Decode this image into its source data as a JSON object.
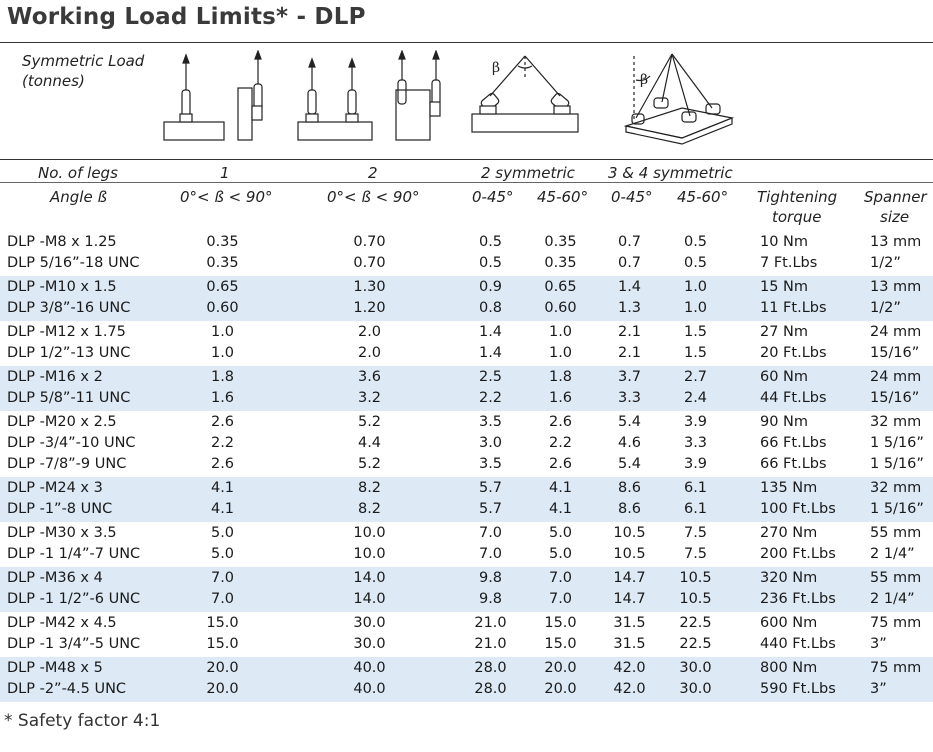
{
  "title": "Working Load Limits* - DLP",
  "header": {
    "symmetric_load": "Symmetric Load",
    "tonnes": "(tonnes)",
    "no_of_legs": "No. of legs",
    "angle": "Angle ß",
    "legs_1": "1",
    "legs_2": "2",
    "legs_2sym": "2 symmetric",
    "legs_34sym": "3 & 4 symmetric",
    "angle_1": "0°< ß < 90°",
    "angle_2": "0°< ß < 90°",
    "a_0_45": "0-45°",
    "a_45_60": "45-60°",
    "b_0_45": "0-45°",
    "b_45_60": "45-60°",
    "torque_1": "Tightening",
    "torque_2": "torque",
    "spanner_1": "Spanner",
    "spanner_2": "size",
    "beta": "β"
  },
  "groups": [
    {
      "rows": [
        [
          "DLP -M8 x 1.25",
          "0.35",
          "0.70",
          "0.5",
          "0.35",
          "0.7",
          "0.5",
          "10 Nm",
          "13 mm"
        ],
        [
          "DLP 5/16”-18 UNC",
          "0.35",
          "0.70",
          "0.5",
          "0.35",
          "0.7",
          "0.5",
          "7 Ft.Lbs",
          "1/2”"
        ]
      ]
    },
    {
      "rows": [
        [
          "DLP -M10 x 1.5",
          "0.65",
          "1.30",
          "0.9",
          "0.65",
          "1.4",
          "1.0",
          "15 Nm",
          "13 mm"
        ],
        [
          "DLP 3/8”-16 UNC",
          "0.60",
          "1.20",
          "0.8",
          "0.60",
          "1.3",
          "1.0",
          "11 Ft.Lbs",
          "1/2”"
        ]
      ]
    },
    {
      "rows": [
        [
          "DLP -M12 x 1.75",
          "1.0",
          "2.0",
          "1.4",
          "1.0",
          "2.1",
          "1.5",
          "27 Nm",
          "24 mm"
        ],
        [
          "DLP 1/2”-13 UNC",
          "1.0",
          "2.0",
          "1.4",
          "1.0",
          "2.1",
          "1.5",
          "20 Ft.Lbs",
          "15/16”"
        ]
      ]
    },
    {
      "rows": [
        [
          "DLP -M16 x 2",
          "1.8",
          "3.6",
          "2.5",
          "1.8",
          "3.7",
          "2.7",
          "60 Nm",
          "24 mm"
        ],
        [
          "DLP 5/8”-11 UNC",
          "1.6",
          "3.2",
          "2.2",
          "1.6",
          "3.3",
          "2.4",
          "44 Ft.Lbs",
          "15/16”"
        ]
      ]
    },
    {
      "rows": [
        [
          "DLP -M20 x 2.5",
          "2.6",
          "5.2",
          "3.5",
          "2.6",
          "5.4",
          "3.9",
          "90 Nm",
          "32 mm"
        ],
        [
          "DLP -3/4”-10 UNC",
          "2.2",
          "4.4",
          "3.0",
          "2.2",
          "4.6",
          "3.3",
          "66 Ft.Lbs",
          "1 5/16”"
        ],
        [
          "DLP -7/8”-9 UNC",
          "2.6",
          "5.2",
          "3.5",
          "2.6",
          "5.4",
          "3.9",
          "66 Ft.Lbs",
          "1 5/16”"
        ]
      ]
    },
    {
      "rows": [
        [
          "DLP -M24 x 3",
          "4.1",
          "8.2",
          "5.7",
          "4.1",
          "8.6",
          "6.1",
          "135 Nm",
          "32 mm"
        ],
        [
          "DLP -1”-8 UNC",
          "4.1",
          "8.2",
          "5.7",
          "4.1",
          "8.6",
          "6.1",
          "100 Ft.Lbs",
          "1 5/16”"
        ]
      ]
    },
    {
      "rows": [
        [
          "DLP -M30 x 3.5",
          "5.0",
          "10.0",
          "7.0",
          "5.0",
          "10.5",
          "7.5",
          "270 Nm",
          "55 mm"
        ],
        [
          "DLP -1 1/4”-7 UNC",
          "5.0",
          "10.0",
          "7.0",
          "5.0",
          "10.5",
          "7.5",
          "200 Ft.Lbs",
          "2 1/4”"
        ]
      ]
    },
    {
      "rows": [
        [
          "DLP -M36 x 4",
          "7.0",
          "14.0",
          "9.8",
          "7.0",
          "14.7",
          "10.5",
          "320 Nm",
          "55 mm"
        ],
        [
          "DLP -1 1/2”-6 UNC",
          "7.0",
          "14.0",
          "9.8",
          "7.0",
          "14.7",
          "10.5",
          "236 Ft.Lbs",
          "2 1/4”"
        ]
      ]
    },
    {
      "rows": [
        [
          "DLP -M42 x 4.5",
          "15.0",
          "30.0",
          "21.0",
          "15.0",
          "31.5",
          "22.5",
          "600 Nm",
          "75 mm"
        ],
        [
          "DLP -1 3/4”-5 UNC",
          "15.0",
          "30.0",
          "21.0",
          "15.0",
          "31.5",
          "22.5",
          "440 Ft.Lbs",
          "3”"
        ]
      ]
    },
    {
      "rows": [
        [
          "DLP -M48 x 5",
          "20.0",
          "40.0",
          "28.0",
          "20.0",
          "42.0",
          "30.0",
          "800 Nm",
          "75 mm"
        ],
        [
          "DLP -2”-4.5 UNC",
          "20.0",
          "40.0",
          "28.0",
          "20.0",
          "42.0",
          "30.0",
          "590 Ft.Lbs",
          "3”"
        ]
      ]
    }
  ],
  "footnote": "* Safety factor 4:1",
  "colors": {
    "band": "#dde9f4",
    "title": "#3a3a3a"
  }
}
